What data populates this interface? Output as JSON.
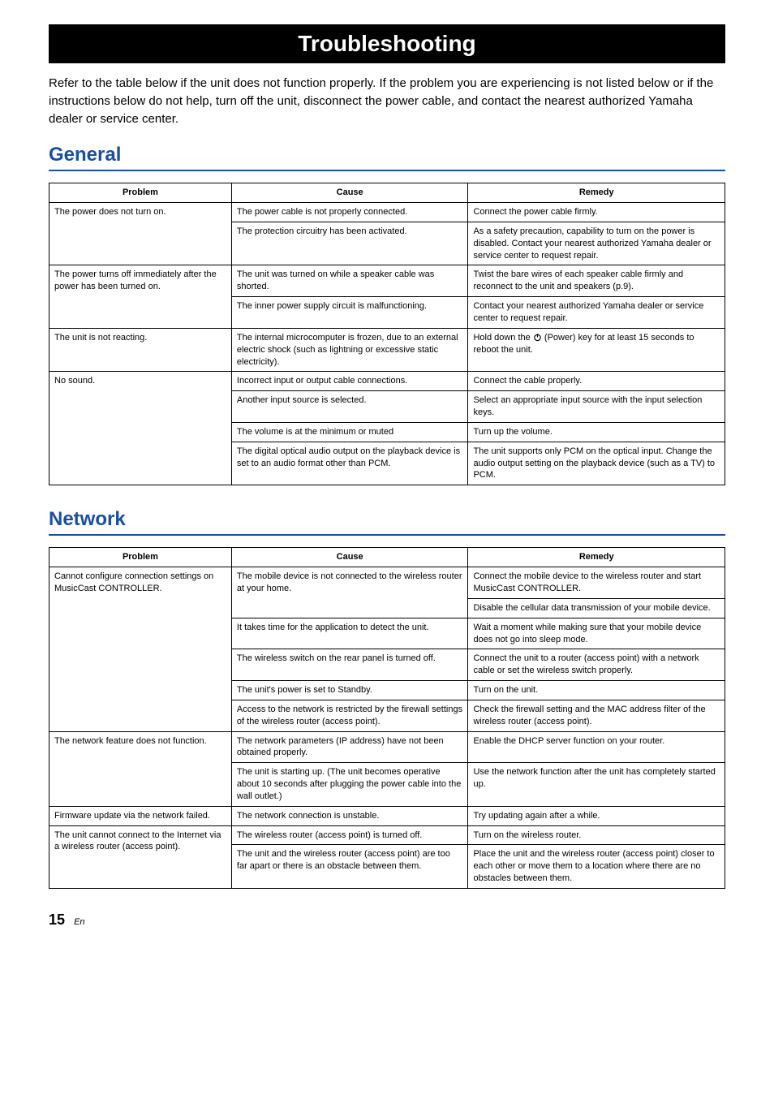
{
  "title": "Troubleshooting",
  "intro": "Refer to the table below if the unit does not function properly.\nIf the problem you are experiencing is not listed below or if the instructions below do not help, turn off the unit, disconnect the power cable, and contact the nearest authorized Yamaha dealer or service center.",
  "sections": {
    "general": {
      "heading": "General",
      "columns": [
        "Problem",
        "Cause",
        "Remedy"
      ],
      "rows": [
        {
          "problem": "The power does not turn on.",
          "problem_rowspan": 2,
          "cause": "The power cable is not properly connected.",
          "remedy": "Connect the power cable firmly."
        },
        {
          "cause": "The protection circuitry has been activated.",
          "remedy": "As a safety precaution, capability to turn on the power is disabled. Contact your nearest authorized Yamaha dealer or service center to request repair."
        },
        {
          "problem": "The power turns off immediately after the power has been turned on.",
          "problem_rowspan": 2,
          "cause": "The unit was turned on while a speaker cable was shorted.",
          "remedy": "Twist the bare wires of each speaker cable firmly and reconnect to the unit and speakers (p.9)."
        },
        {
          "cause": "The inner power supply circuit is malfunctioning.",
          "remedy": "Contact your nearest authorized Yamaha dealer or service center to request repair."
        },
        {
          "problem": "The unit is not reacting.",
          "problem_rowspan": 1,
          "cause": "The internal microcomputer is frozen, due to an external electric shock (such as lightning or excessive static electricity).",
          "remedy_prefix": "Hold down the ",
          "remedy_suffix": " (Power) key for at least 15 seconds to reboot the unit.",
          "remedy_has_icon": true
        },
        {
          "problem": "No sound.",
          "problem_rowspan": 4,
          "cause": "Incorrect input or output cable connections.",
          "remedy": "Connect the cable properly."
        },
        {
          "cause": "Another input source is selected.",
          "remedy": "Select an appropriate input source with the input selection keys."
        },
        {
          "cause": "The volume is at the minimum or muted",
          "remedy": "Turn up the volume."
        },
        {
          "cause": "The digital optical audio output on the playback device is set to an audio format other than PCM.",
          "remedy": "The unit supports only PCM on the optical input. Change the audio output setting on the playback device (such as a TV) to PCM."
        }
      ]
    },
    "network": {
      "heading": "Network",
      "columns": [
        "Problem",
        "Cause",
        "Remedy"
      ],
      "rows": [
        {
          "problem": "Cannot configure connection settings on MusicCast CONTROLLER.",
          "problem_rowspan": 6,
          "cause": "The mobile device is not connected to the wireless router at your home.",
          "cause_rowspan": 2,
          "remedy": "Connect the mobile device to the wireless router and start MusicCast CONTROLLER."
        },
        {
          "remedy": "Disable the cellular data transmission of your mobile device."
        },
        {
          "cause": "It takes time for the application to detect the unit.",
          "remedy": "Wait a moment while making sure that your mobile device does not go into sleep mode."
        },
        {
          "cause": "The wireless switch on the rear panel is turned off.",
          "remedy": "Connect the unit to a router (access point) with a network cable or set the wireless switch properly."
        },
        {
          "cause": "The unit's power is set to Standby.",
          "remedy": "Turn on the unit."
        },
        {
          "cause": "Access to the network is restricted by the firewall settings of the wireless router (access point).",
          "remedy": "Check the firewall setting and the MAC address filter of the wireless router (access point)."
        },
        {
          "problem": "The network feature does not function.",
          "problem_rowspan": 2,
          "cause": "The network parameters (IP address) have not been obtained properly.",
          "remedy": "Enable the DHCP server function on your router."
        },
        {
          "cause": "The unit is starting up. (The unit becomes operative about 10 seconds after plugging the power cable into the wall outlet.)",
          "remedy": "Use the network function after the unit has completely started up."
        },
        {
          "problem": "Firmware update via the network failed.",
          "problem_rowspan": 1,
          "cause": "The network connection is unstable.",
          "remedy": "Try updating again after a while."
        },
        {
          "problem": "The unit cannot connect to the Internet via a wireless router (access point).",
          "problem_rowspan": 2,
          "cause": "The wireless router (access point) is turned off.",
          "remedy": "Turn on the wireless router."
        },
        {
          "cause": "The unit and the wireless router (access point) are too far apart or there is an obstacle between them.",
          "remedy": "Place the unit and the wireless router (access point) closer to each other or move them to a location where there are no obstacles between them."
        }
      ]
    }
  },
  "footer": {
    "page": "15",
    "lang": "En"
  },
  "colors": {
    "heading": "#1a4ea0",
    "title_bg": "#000000",
    "title_fg": "#ffffff",
    "border": "#000000"
  }
}
